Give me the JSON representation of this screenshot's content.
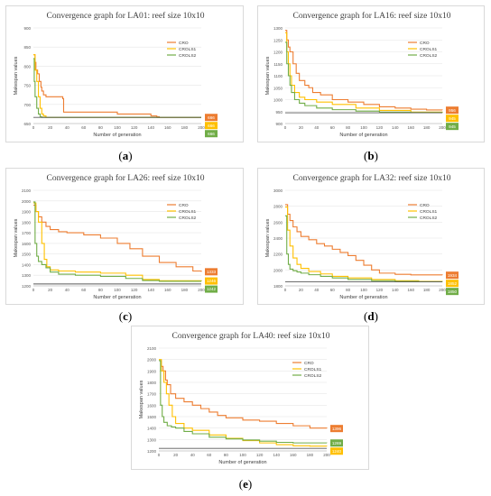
{
  "panels": [
    {
      "caption_letter": "a",
      "chart_data": {
        "type": "line",
        "title": "Convergence graph for LA01: reef size 10x10",
        "xlabel": "Number of generation",
        "ylabel": "Makespan values",
        "xlim": [
          0,
          200
        ],
        "ylim": [
          650,
          900
        ],
        "xticks": [
          0,
          20,
          40,
          60,
          80,
          100,
          120,
          140,
          160,
          180,
          200
        ],
        "yticks": [
          650,
          700,
          750,
          800,
          850,
          900
        ],
        "legend_position": "right",
        "series": [
          {
            "name": "CRO",
            "color": "#ed7d31",
            "final_label": "666",
            "x": [
              0,
              2,
              3,
              5,
              7,
              9,
              10,
              12,
              15,
              20,
              35,
              36,
              60,
              100,
              140,
              147,
              150,
              155,
              200
            ],
            "y": [
              830,
              810,
              790,
              780,
              760,
              745,
              735,
              725,
              720,
              720,
              715,
              680,
              680,
              675,
              670,
              668,
              666,
              666,
              666
            ]
          },
          {
            "name": "CROLS1",
            "color": "#ffc000",
            "final_label": "666",
            "x": [
              0,
              2,
              4,
              6,
              8,
              10,
              12,
              15,
              200
            ],
            "y": [
              830,
              790,
              760,
              720,
              690,
              675,
              670,
              666,
              666
            ]
          },
          {
            "name": "CROLS2",
            "color": "#70ad47",
            "final_label": "666",
            "x": [
              0,
              1,
              2,
              4,
              6,
              8,
              10,
              200
            ],
            "y": [
              820,
              760,
              720,
              690,
              675,
              668,
              666,
              666
            ]
          },
          {
            "name": "",
            "color": "#595959",
            "x": [
              0,
              200
            ],
            "y": [
              666,
              666
            ]
          }
        ]
      }
    },
    {
      "caption_letter": "b",
      "chart_data": {
        "type": "line",
        "title": "Convergence graph for LA16: reef size 10x10",
        "xlabel": "Number of generation",
        "ylabel": "Makespan values",
        "xlim": [
          0,
          200
        ],
        "ylim": [
          900,
          1300
        ],
        "xticks": [
          0,
          20,
          40,
          60,
          80,
          100,
          120,
          140,
          160,
          180,
          200
        ],
        "yticks": [
          900,
          950,
          1000,
          1050,
          1100,
          1150,
          1200,
          1250,
          1300
        ],
        "legend_position": "right",
        "series": [
          {
            "name": "CRO",
            "color": "#ed7d31",
            "final_label": "956",
            "x": [
              0,
              2,
              4,
              6,
              10,
              14,
              18,
              25,
              30,
              35,
              45,
              60,
              80,
              100,
              120,
              140,
              160,
              180,
              200
            ],
            "y": [
              1290,
              1250,
              1220,
              1200,
              1150,
              1110,
              1080,
              1060,
              1050,
              1030,
              1020,
              1000,
              990,
              980,
              970,
              965,
              960,
              957,
              956
            ]
          },
          {
            "name": "CROLS1",
            "color": "#ffc000",
            "final_label": "945",
            "x": [
              0,
              2,
              4,
              6,
              8,
              12,
              18,
              25,
              40,
              60,
              90,
              120,
              160,
              200
            ],
            "y": [
              1280,
              1200,
              1150,
              1100,
              1060,
              1030,
              1010,
              1000,
              990,
              980,
              965,
              955,
              948,
              945
            ]
          },
          {
            "name": "CROLS2",
            "color": "#70ad47",
            "final_label": "945",
            "x": [
              0,
              2,
              4,
              6,
              8,
              12,
              18,
              25,
              40,
              60,
              90,
              120,
              160,
              200
            ],
            "y": [
              1240,
              1150,
              1100,
              1060,
              1030,
              1000,
              985,
              975,
              965,
              958,
              952,
              948,
              946,
              945
            ]
          },
          {
            "name": "",
            "color": "#595959",
            "x": [
              0,
              200
            ],
            "y": [
              945,
              945
            ]
          }
        ]
      }
    },
    {
      "caption_letter": "c",
      "chart_data": {
        "type": "line",
        "title": "Convergence graph for LA26: reef size 10x10",
        "xlabel": "Number of generation",
        "ylabel": "Makespan values",
        "xlim": [
          0,
          200
        ],
        "ylim": [
          1200,
          2100
        ],
        "xticks": [
          0,
          20,
          40,
          60,
          80,
          100,
          120,
          140,
          160,
          180,
          200
        ],
        "yticks": [
          1200,
          1300,
          1400,
          1500,
          1600,
          1700,
          1800,
          1900,
          2000,
          2100
        ],
        "legend_position": "right",
        "series": [
          {
            "name": "CRO",
            "color": "#ed7d31",
            "final_label": "1333",
            "x": [
              0,
              3,
              6,
              10,
              15,
              20,
              30,
              40,
              60,
              80,
              100,
              115,
              130,
              150,
              170,
              190,
              200
            ],
            "y": [
              1960,
              1900,
              1850,
              1800,
              1760,
              1730,
              1710,
              1700,
              1680,
              1650,
              1600,
              1550,
              1480,
              1420,
              1380,
              1340,
              1333
            ]
          },
          {
            "name": "CROLS1",
            "color": "#ffc000",
            "final_label": "1246",
            "x": [
              0,
              3,
              6,
              10,
              13,
              16,
              20,
              30,
              50,
              80,
              110,
              130,
              150,
              200
            ],
            "y": [
              1980,
              1900,
              1800,
              1600,
              1450,
              1380,
              1350,
              1340,
              1330,
              1320,
              1300,
              1260,
              1248,
              1246
            ]
          },
          {
            "name": "CROLS2",
            "color": "#70ad47",
            "final_label": "1242",
            "x": [
              0,
              2,
              4,
              6,
              10,
              15,
              20,
              30,
              50,
              80,
              110,
              130,
              150,
              200
            ],
            "y": [
              1990,
              1600,
              1480,
              1430,
              1400,
              1370,
              1330,
              1310,
              1300,
              1290,
              1270,
              1250,
              1243,
              1242
            ]
          },
          {
            "name": "",
            "color": "#595959",
            "x": [
              0,
              200
            ],
            "y": [
              1218,
              1218
            ]
          }
        ]
      }
    },
    {
      "caption_letter": "d",
      "chart_data": {
        "type": "line",
        "title": "Convergence graph for LA32: reef size 10x10",
        "xlabel": "Number of generation",
        "ylabel": "Makespan values",
        "xlim": [
          0,
          200
        ],
        "ylim": [
          1800,
          3000
        ],
        "xticks": [
          0,
          20,
          40,
          60,
          80,
          100,
          120,
          140,
          160,
          180,
          200
        ],
        "yticks": [
          1800,
          2000,
          2200,
          2400,
          2600,
          2800,
          3000
        ],
        "legend_position": "right",
        "series": [
          {
            "name": "CRO",
            "color": "#ed7d31",
            "final_label": "1934",
            "x": [
              0,
              3,
              6,
              10,
              15,
              20,
              30,
              40,
              50,
              60,
              70,
              80,
              90,
              100,
              110,
              120,
              140,
              160,
              200
            ],
            "y": [
              2820,
              2700,
              2620,
              2540,
              2480,
              2420,
              2380,
              2330,
              2300,
              2260,
              2220,
              2180,
              2120,
              2060,
              2000,
              1960,
              1945,
              1938,
              1934
            ]
          },
          {
            "name": "CROLS1",
            "color": "#ffc000",
            "final_label": "1852",
            "x": [
              0,
              3,
              6,
              10,
              15,
              20,
              30,
              45,
              60,
              80,
              110,
              140,
              170,
              200
            ],
            "y": [
              2790,
              2500,
              2300,
              2150,
              2070,
              2020,
              1980,
              1950,
              1920,
              1900,
              1880,
              1865,
              1856,
              1852
            ]
          },
          {
            "name": "CROLS2",
            "color": "#70ad47",
            "final_label": "1850",
            "x": [
              0,
              2,
              4,
              6,
              10,
              15,
              20,
              30,
              45,
              60,
              80,
              110,
              140,
              170,
              200
            ],
            "y": [
              2680,
              2200,
              2070,
              2010,
              1990,
              1975,
              1960,
              1940,
              1920,
              1900,
              1880,
              1865,
              1856,
              1852,
              1850
            ]
          },
          {
            "name": "",
            "color": "#595959",
            "x": [
              0,
              200
            ],
            "y": [
              1850,
              1850
            ]
          }
        ]
      }
    },
    {
      "caption_letter": "e",
      "chart_data": {
        "type": "line",
        "title": "Convergence graph for LA40: reef size 10x10",
        "xlabel": "Number of generation",
        "ylabel": "Makespan values",
        "xlim": [
          0,
          200
        ],
        "ylim": [
          1200,
          2100
        ],
        "xticks": [
          0,
          20,
          40,
          60,
          80,
          100,
          120,
          140,
          160,
          180,
          200
        ],
        "yticks": [
          1200,
          1300,
          1400,
          1500,
          1600,
          1700,
          1800,
          1900,
          2000,
          2100
        ],
        "legend_position": "right",
        "series": [
          {
            "name": "CRO",
            "color": "#ed7d31",
            "final_label": "1396",
            "x": [
              0,
              3,
              5,
              8,
              10,
              14,
              20,
              30,
              40,
              50,
              60,
              70,
              80,
              100,
              120,
              140,
              160,
              180,
              200
            ],
            "y": [
              1990,
              1940,
              1900,
              1820,
              1780,
              1700,
              1660,
              1630,
              1600,
              1570,
              1540,
              1510,
              1490,
              1470,
              1460,
              1440,
              1420,
              1400,
              1396
            ]
          },
          {
            "name": "CROLS1",
            "color": "#ffc000",
            "final_label": "1240",
            "x": [
              0,
              3,
              6,
              9,
              12,
              16,
              20,
              30,
              40,
              60,
              80,
              100,
              120,
              140,
              160,
              180,
              200
            ],
            "y": [
              2000,
              1900,
              1800,
              1700,
              1600,
              1500,
              1440,
              1400,
              1380,
              1340,
              1310,
              1290,
              1270,
              1255,
              1245,
              1242,
              1240
            ]
          },
          {
            "name": "CROLS2",
            "color": "#70ad47",
            "final_label": "1269",
            "x": [
              0,
              2,
              4,
              6,
              10,
              15,
              20,
              30,
              40,
              60,
              80,
              100,
              120,
              140,
              160,
              200
            ],
            "y": [
              1990,
              1600,
              1500,
              1450,
              1420,
              1410,
              1400,
              1370,
              1350,
              1320,
              1305,
              1295,
              1285,
              1275,
              1270,
              1269
            ]
          },
          {
            "name": "",
            "color": "#595959",
            "x": [
              0,
              200
            ],
            "y": [
              1222,
              1222
            ]
          }
        ]
      }
    }
  ]
}
